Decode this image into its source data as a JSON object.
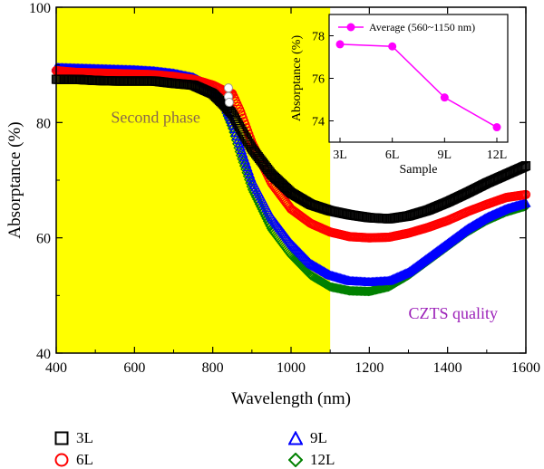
{
  "chart_data": [
    {
      "type": "scatter",
      "xlabel": "Wavelength (nm)",
      "ylabel": "Absorptance (%)",
      "xlim": [
        400,
        1600
      ],
      "ylim": [
        40,
        100
      ],
      "xticks": [
        400,
        600,
        800,
        1000,
        1200,
        1400,
        1600
      ],
      "yticks": [
        40,
        60,
        80,
        100
      ],
      "shaded_region": {
        "x": [
          400,
          1100
        ],
        "color": "#ffff00"
      },
      "annotations": [
        {
          "text": "Second phase",
          "x": 540,
          "y": 80,
          "color": "#8a6a4a"
        },
        {
          "text": "CZTS quality",
          "x": 1300,
          "y": 46,
          "color": "#9b1fb8"
        }
      ],
      "series": [
        {
          "name": "3L",
          "marker": "square",
          "color": "#000000",
          "x": [
            400,
            450,
            500,
            550,
            600,
            650,
            700,
            750,
            800,
            830,
            850,
            870,
            900,
            950,
            1000,
            1050,
            1100,
            1150,
            1200,
            1250,
            1300,
            1350,
            1400,
            1450,
            1500,
            1550,
            1600
          ],
          "y": [
            87.5,
            87.5,
            87.3,
            87.2,
            87.2,
            87.2,
            86.8,
            86.5,
            85.0,
            83.0,
            81.5,
            79.0,
            75.5,
            71.0,
            67.8,
            65.8,
            64.7,
            64.0,
            63.5,
            63.3,
            63.8,
            64.8,
            66.2,
            67.8,
            69.5,
            71.0,
            72.5
          ]
        },
        {
          "name": "6L",
          "marker": "circle",
          "color": "#ff0000",
          "x": [
            400,
            450,
            500,
            550,
            600,
            650,
            700,
            750,
            800,
            830,
            850,
            870,
            900,
            950,
            1000,
            1050,
            1100,
            1150,
            1200,
            1250,
            1300,
            1350,
            1400,
            1450,
            1500,
            1550,
            1600
          ],
          "y": [
            89.0,
            88.7,
            88.6,
            88.5,
            88.4,
            88.3,
            88.0,
            87.5,
            86.5,
            85.5,
            85.0,
            82.0,
            76.5,
            69.5,
            65.0,
            62.5,
            61.0,
            60.2,
            60.0,
            60.1,
            60.8,
            61.8,
            63.0,
            64.5,
            65.8,
            67.0,
            67.5
          ]
        },
        {
          "name": "9L",
          "marker": "triangle",
          "color": "#0000ff",
          "x": [
            400,
            450,
            500,
            550,
            600,
            650,
            700,
            750,
            800,
            830,
            850,
            870,
            900,
            950,
            1000,
            1050,
            1100,
            1150,
            1200,
            1250,
            1300,
            1350,
            1400,
            1450,
            1500,
            1550,
            1600
          ],
          "y": [
            89.5,
            89.4,
            89.3,
            89.2,
            89.1,
            88.9,
            88.5,
            87.8,
            86.0,
            83.0,
            80.0,
            76.0,
            70.0,
            63.5,
            59.0,
            55.5,
            53.5,
            52.5,
            52.3,
            52.5,
            54.0,
            56.5,
            59.0,
            61.5,
            63.5,
            65.0,
            66.0
          ]
        },
        {
          "name": "12L",
          "marker": "diamond",
          "color": "#008000",
          "x": [
            400,
            450,
            500,
            550,
            600,
            650,
            700,
            750,
            800,
            830,
            850,
            870,
            900,
            950,
            1000,
            1050,
            1100,
            1150,
            1200,
            1250,
            1300,
            1350,
            1400,
            1450,
            1500,
            1550,
            1600
          ],
          "y": [
            89.2,
            89.0,
            88.9,
            88.8,
            88.7,
            88.5,
            88.3,
            87.8,
            86.0,
            82.5,
            79.0,
            74.5,
            68.5,
            61.5,
            57.0,
            53.5,
            51.5,
            50.8,
            50.7,
            51.5,
            53.5,
            56.0,
            58.5,
            61.0,
            63.0,
            64.5,
            65.5
          ]
        }
      ]
    },
    {
      "type": "line",
      "xlabel": "Sample",
      "ylabel": "Absorptance (%)",
      "categories": [
        "3L",
        "6L",
        "9L",
        "12L"
      ],
      "ylim": [
        73,
        79
      ],
      "yticks": [
        74,
        76,
        78
      ],
      "legend": "Average (560~1150 nm)",
      "series": [
        {
          "name": "Average (560~1150 nm)",
          "color": "#ff00ff",
          "values": [
            77.6,
            77.5,
            75.1,
            73.7
          ]
        }
      ]
    }
  ],
  "legend_items": [
    {
      "label": "3L",
      "marker": "square",
      "color": "#000000"
    },
    {
      "label": "6L",
      "marker": "circle",
      "color": "#ff0000"
    },
    {
      "label": "9L",
      "marker": "triangle",
      "color": "#0000ff"
    },
    {
      "label": "12L",
      "marker": "diamond",
      "color": "#008000"
    }
  ]
}
